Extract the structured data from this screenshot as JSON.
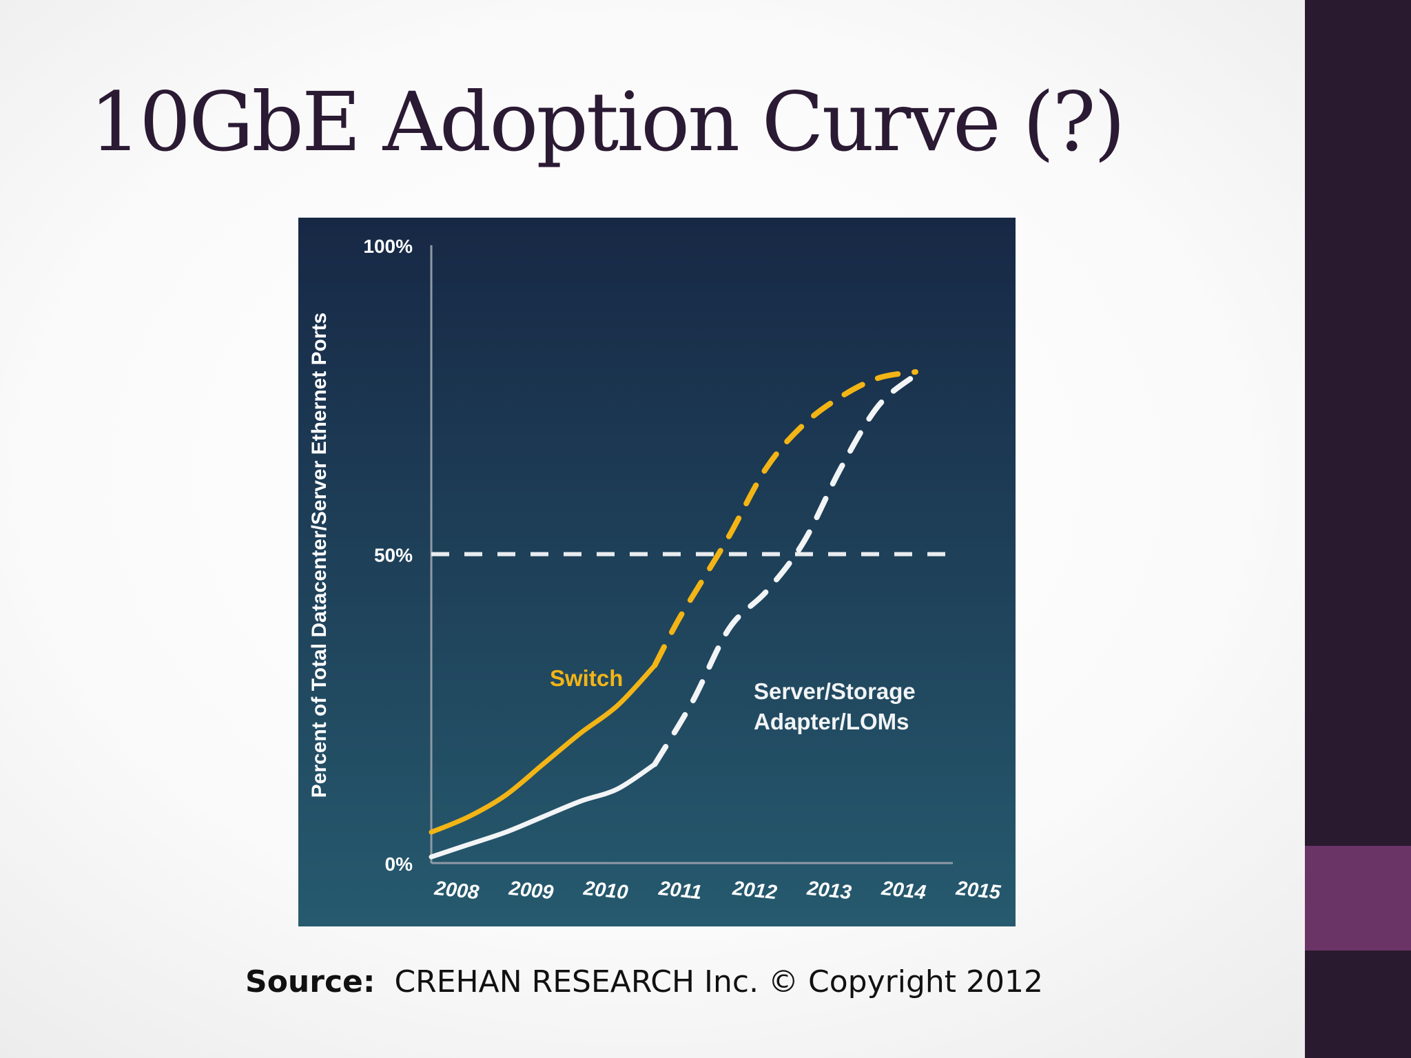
{
  "slide": {
    "title": "10GbE Adoption Curve (?)",
    "source_label": "Source:",
    "source_text": "CREHAN RESEARCH Inc. © Copyright 2012"
  },
  "colors": {
    "switch": "#f3b515",
    "server": "#f2f4f6",
    "panel_top": "#172845",
    "panel_bottom": "#265a6e",
    "sidebar": "#2a1a2f",
    "accent": "#6a3466"
  },
  "chart_data": {
    "type": "line",
    "ylabel": "Percent of Total Datacenter/Server Ethernet Ports",
    "xlabel": "",
    "x_ticks": [
      "2008",
      "2009",
      "2010",
      "2011",
      "2012",
      "2013",
      "2014",
      "2015"
    ],
    "y_ticks": [
      "100%",
      "50%",
      "0%"
    ],
    "xlim": [
      2008,
      2015
    ],
    "ylim": [
      0,
      100
    ],
    "reference_line": {
      "y": 50,
      "style": "dashed"
    },
    "series": [
      {
        "name": "Switch",
        "x": [
          2008,
          2008.5,
          2009,
          2009.5,
          2010,
          2010.5,
          2011,
          2011.3,
          2011.6,
          2012,
          2012.5,
          2013,
          2013.5,
          2014,
          2014.5
        ],
        "y": [
          5,
          7.5,
          11,
          16,
          21,
          25.5,
          32,
          39,
          45,
          53,
          64,
          71,
          75.5,
          78.5,
          79.5
        ],
        "solid_until": 2011
      },
      {
        "name": "Server/Storage\nAdapter/LOMs",
        "x": [
          2008,
          2008.5,
          2009,
          2009.5,
          2010,
          2010.5,
          2011,
          2011.5,
          2012,
          2012.5,
          2013,
          2013.5,
          2014,
          2014.5
        ],
        "y": [
          1,
          3,
          5,
          7.5,
          10,
          12,
          16,
          26,
          38,
          44,
          52,
          64,
          74,
          79
        ],
        "solid_until": 2011
      }
    ],
    "annotations": [
      {
        "text": "Switch",
        "series": 0
      },
      {
        "text": "Server/Storage",
        "series": 1
      },
      {
        "text": "Adapter/LOMs",
        "series": 1
      }
    ]
  }
}
